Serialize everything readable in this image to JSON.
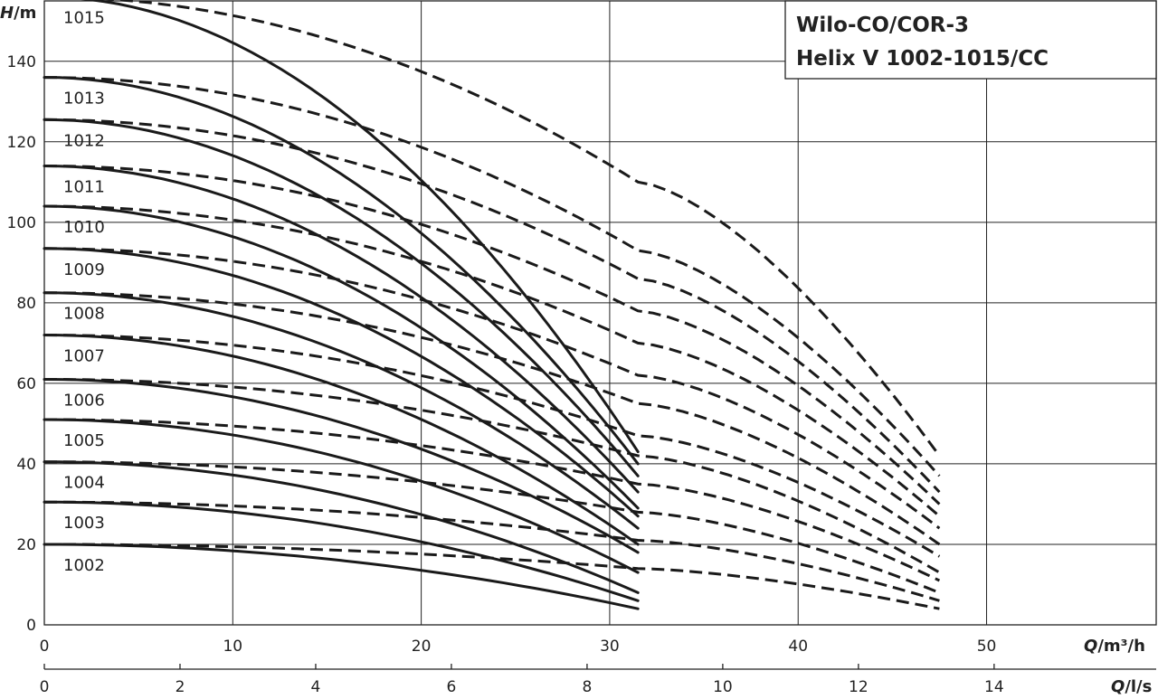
{
  "chart_data": {
    "type": "line",
    "title_lines": [
      "Wilo-CO/COR-3",
      "Helix V 1002-1015/CC"
    ],
    "y_axis": {
      "label_italic": "H",
      "label_rest": "/m",
      "range": [
        0,
        155
      ],
      "ticks": [
        0,
        20,
        40,
        60,
        80,
        100,
        120,
        140
      ]
    },
    "x_axis_primary": {
      "label_italic": "Q",
      "label_rest": "/m³/h",
      "range": [
        0,
        59
      ],
      "ticks": [
        0,
        10,
        20,
        30,
        40,
        50
      ]
    },
    "x_axis_secondary": {
      "label_italic": "Q",
      "label_rest": "/l/s",
      "ticks": [
        0,
        2,
        4,
        6,
        8,
        10,
        12,
        14
      ],
      "unit_factor": 3.6
    },
    "grid": true,
    "series": [
      {
        "name": "1002",
        "shutoff_head": 20,
        "solid_end": [
          31.5,
          4
        ],
        "knee": [
          31.5,
          14
        ],
        "dashed_end": [
          47.5,
          4
        ]
      },
      {
        "name": "1003",
        "shutoff_head": 30.5,
        "solid_end": [
          31.5,
          6
        ],
        "knee": [
          31.5,
          21
        ],
        "dashed_end": [
          47.5,
          6
        ]
      },
      {
        "name": "1004",
        "shutoff_head": 40.5,
        "solid_end": [
          31.5,
          8
        ],
        "knee": [
          31.5,
          28
        ],
        "dashed_end": [
          47.5,
          8
        ]
      },
      {
        "name": "1005",
        "shutoff_head": 51,
        "solid_end": [
          31.5,
          13
        ],
        "knee": [
          31.5,
          35
        ],
        "dashed_end": [
          47.5,
          11
        ]
      },
      {
        "name": "1006",
        "shutoff_head": 61,
        "solid_end": [
          31.5,
          18
        ],
        "knee": [
          31.5,
          42
        ],
        "dashed_end": [
          47.5,
          13
        ]
      },
      {
        "name": "1007",
        "shutoff_head": 72,
        "solid_end": [
          31.5,
          20
        ],
        "knee": [
          31.5,
          47
        ],
        "dashed_end": [
          47.5,
          17
        ]
      },
      {
        "name": "1008",
        "shutoff_head": 82.5,
        "solid_end": [
          31.5,
          24
        ],
        "knee": [
          31.5,
          55
        ],
        "dashed_end": [
          47.5,
          20
        ]
      },
      {
        "name": "1009",
        "shutoff_head": 93.5,
        "solid_end": [
          31.5,
          27
        ],
        "knee": [
          31.5,
          62
        ],
        "dashed_end": [
          47.5,
          24
        ]
      },
      {
        "name": "1010",
        "shutoff_head": 104,
        "solid_end": [
          31.5,
          29
        ],
        "knee": [
          31.5,
          70
        ],
        "dashed_end": [
          47.5,
          27
        ]
      },
      {
        "name": "1011",
        "shutoff_head": 114,
        "solid_end": [
          31.5,
          33
        ],
        "knee": [
          31.5,
          78
        ],
        "dashed_end": [
          47.5,
          30
        ]
      },
      {
        "name": "1012",
        "shutoff_head": 125.5,
        "solid_end": [
          31.5,
          37
        ],
        "knee": [
          31.5,
          86
        ],
        "dashed_end": [
          47.5,
          33
        ]
      },
      {
        "name": "1013",
        "shutoff_head": 136,
        "solid_end": [
          31.5,
          40
        ],
        "knee": [
          31.5,
          93
        ],
        "dashed_end": [
          47.5,
          37
        ]
      },
      {
        "name": "1015",
        "shutoff_head": 156,
        "solid_end": [
          31.5,
          43
        ],
        "knee": [
          31.5,
          110
        ],
        "dashed_end": [
          47.5,
          42
        ]
      }
    ]
  }
}
